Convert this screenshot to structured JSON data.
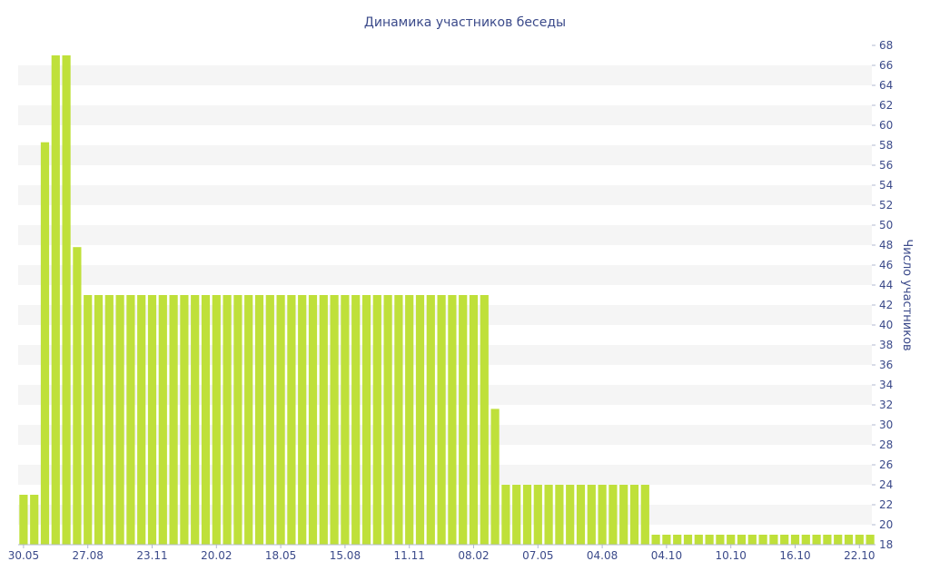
{
  "chart_data": {
    "type": "bar",
    "title": "Динамика участников беседы",
    "xlabel": "",
    "ylabel": "Число участников",
    "ylim": [
      18,
      68
    ],
    "ytick_step": 2,
    "y_axis_position": "right",
    "grid": "horizontal bands",
    "bar_color": "#bfe03a",
    "values": [
      23,
      23,
      58.3,
      67,
      67,
      47.8,
      43,
      43,
      43,
      43,
      43,
      43,
      43,
      43,
      43,
      43,
      43,
      43,
      43,
      43,
      43,
      43,
      43,
      43,
      43,
      43,
      43,
      43,
      43,
      43,
      43,
      43,
      43,
      43,
      43,
      43,
      43,
      43,
      43,
      43,
      43,
      43,
      43,
      43,
      31.6,
      24,
      24,
      24,
      24,
      24,
      24,
      24,
      24,
      24,
      24,
      24,
      24,
      24,
      24,
      19,
      19,
      19,
      19,
      19,
      19,
      19,
      19,
      19,
      19,
      19,
      19,
      19,
      19,
      19,
      19,
      19,
      19,
      19,
      19,
      19
    ],
    "x_tick_labels": [
      {
        "bar": 0,
        "label": "30.05"
      },
      {
        "bar": 6,
        "label": "27.08"
      },
      {
        "bar": 12,
        "label": "23.11"
      },
      {
        "bar": 18,
        "label": "20.02"
      },
      {
        "bar": 24,
        "label": "18.05"
      },
      {
        "bar": 30,
        "label": "15.08"
      },
      {
        "bar": 36,
        "label": "11.11"
      },
      {
        "bar": 42,
        "label": "08.02"
      },
      {
        "bar": 48,
        "label": "07.05"
      },
      {
        "bar": 54,
        "label": "04.08"
      },
      {
        "bar": 60,
        "label": "04.10"
      },
      {
        "bar": 66,
        "label": "10.10"
      },
      {
        "bar": 72,
        "label": "16.10"
      },
      {
        "bar": 78,
        "label": "22.10"
      }
    ]
  }
}
